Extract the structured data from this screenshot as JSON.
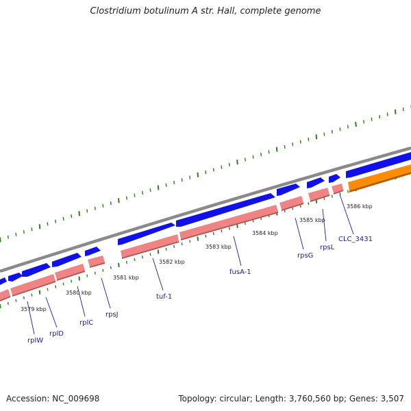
{
  "title": "Clostridium botulinum A str. Hall, complete genome",
  "footer": {
    "accession": "Accession: NC_009698",
    "summary": "Topology: circular; Length: 3,760,560 bp; Genes: 3,507"
  },
  "colors": {
    "forward_gene": "#1010e8",
    "reverse_gene": "#f08484",
    "other_feature": "#ff8c00",
    "backbone": "#8a8a8a",
    "ticks": "#2e7d1e",
    "label": "#1a1aa6"
  },
  "kbp_labels": [
    "3579 kbp",
    "3580 kbp",
    "3581 kbp",
    "3582 kbp",
    "3583 kbp",
    "3584 kbp",
    "3585 kbp",
    "3586 kbp"
  ],
  "gene_labels": [
    "rplW",
    "rplD",
    "rplC",
    "rpsJ",
    "tuf-1",
    "fusA-1",
    "rpsG",
    "rpsL",
    "CLC_3431"
  ]
}
